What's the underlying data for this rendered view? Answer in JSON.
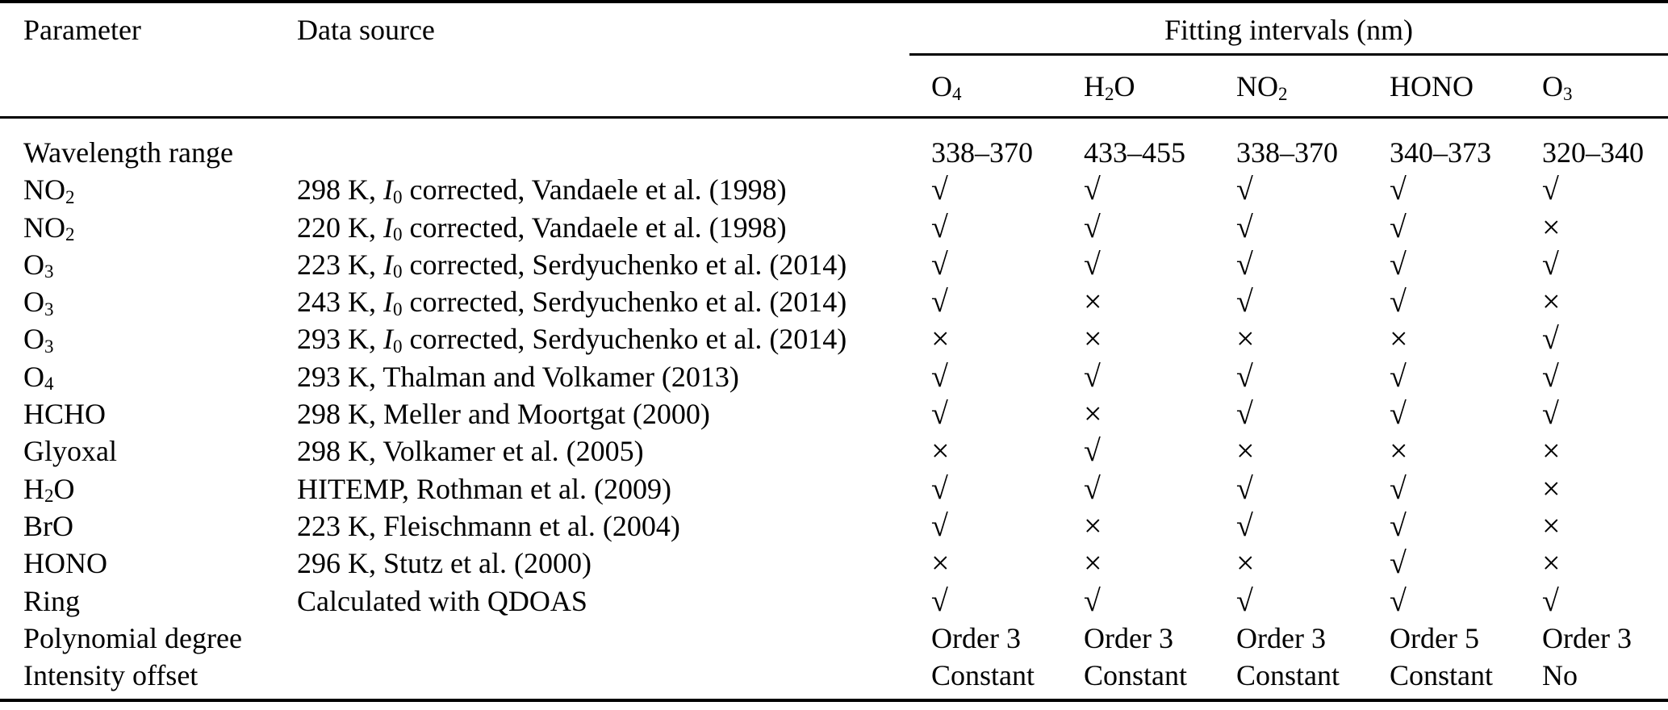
{
  "table": {
    "columns": {
      "parameter": "Parameter",
      "data_source": "Data source",
      "fitting_intervals_group": "Fitting intervals (nm)",
      "intervals": [
        "O_4",
        "H_2O",
        "NO_2",
        "HONO",
        "O_3"
      ]
    },
    "rows": [
      {
        "parameter": "Wavelength range",
        "data_source": "",
        "values": [
          "338–370",
          "433–455",
          "338–370",
          "340–373",
          "320–340"
        ]
      },
      {
        "parameter": "NO_2",
        "data_source": "298 K, *I*_0 corrected, Vandaele et al. (1998)",
        "values": [
          "check",
          "check",
          "check",
          "check",
          "check"
        ]
      },
      {
        "parameter": "NO_2",
        "data_source": "220 K, *I*_0 corrected, Vandaele et al. (1998)",
        "values": [
          "check",
          "check",
          "check",
          "check",
          "cross"
        ]
      },
      {
        "parameter": "O_3",
        "data_source": "223 K, *I*_0 corrected, Serdyuchenko et al. (2014)",
        "values": [
          "check",
          "check",
          "check",
          "check",
          "check"
        ]
      },
      {
        "parameter": "O_3",
        "data_source": "243 K, *I*_0 corrected, Serdyuchenko et al. (2014)",
        "values": [
          "check",
          "cross",
          "check",
          "check",
          "cross"
        ]
      },
      {
        "parameter": "O_3",
        "data_source": "293 K, *I*_0 corrected, Serdyuchenko et al. (2014)",
        "values": [
          "cross",
          "cross",
          "cross",
          "cross",
          "check"
        ]
      },
      {
        "parameter": "O_4",
        "data_source": "293 K, Thalman and Volkamer (2013)",
        "values": [
          "check",
          "check",
          "check",
          "check",
          "check"
        ]
      },
      {
        "parameter": "HCHO",
        "data_source": "298 K, Meller and Moortgat (2000)",
        "values": [
          "check",
          "cross",
          "check",
          "check",
          "check"
        ]
      },
      {
        "parameter": "Glyoxal",
        "data_source": "298 K, Volkamer et al. (2005)",
        "values": [
          "cross",
          "check",
          "cross",
          "cross",
          "cross"
        ]
      },
      {
        "parameter": "H_2O",
        "data_source": "HITEMP, Rothman et al. (2009)",
        "values": [
          "check",
          "check",
          "check",
          "check",
          "cross"
        ]
      },
      {
        "parameter": "BrO",
        "data_source": "223 K, Fleischmann et al. (2004)",
        "values": [
          "check",
          "cross",
          "check",
          "check",
          "cross"
        ]
      },
      {
        "parameter": "HONO",
        "data_source": "296 K, Stutz et al. (2000)",
        "values": [
          "cross",
          "cross",
          "cross",
          "check",
          "cross"
        ]
      },
      {
        "parameter": "Ring",
        "data_source": "Calculated with QDOAS",
        "values": [
          "check",
          "check",
          "check",
          "check",
          "check"
        ]
      },
      {
        "parameter": "Polynomial degree",
        "data_source": "",
        "values": [
          "Order 3",
          "Order 3",
          "Order 3",
          "Order 5",
          "Order 3"
        ]
      },
      {
        "parameter": "Intensity offset",
        "data_source": "",
        "values": [
          "Constant",
          "Constant",
          "Constant",
          "Constant",
          "No"
        ]
      }
    ]
  },
  "text_color": "#000000",
  "background_color": "#ffffff"
}
